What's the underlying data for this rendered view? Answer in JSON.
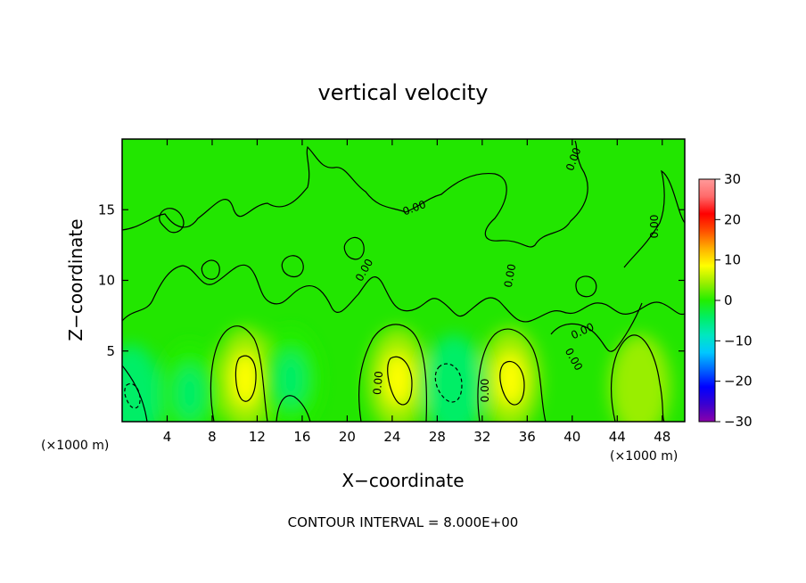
{
  "chart_data": {
    "type": "heatmap",
    "title": "vertical velocity",
    "xlabel": "X−coordinate",
    "ylabel": "Z−coordinate",
    "x_unit_left": "(×1000 m)",
    "x_unit_right": "(×1000 m)",
    "xlim": [
      0,
      50
    ],
    "ylim": [
      0,
      20
    ],
    "x_ticks": [
      4,
      8,
      12,
      16,
      20,
      24,
      28,
      32,
      36,
      40,
      44,
      48
    ],
    "y_ticks": [
      5,
      10,
      15
    ],
    "colorbar": {
      "ticks": [
        "30",
        "20",
        "10",
        "0",
        "−10",
        "−20",
        "−30"
      ],
      "min": -30,
      "max": 30,
      "colors": [
        "#8a00aa",
        "#3a00d0",
        "#0000ff",
        "#0066ff",
        "#00c8ff",
        "#00e8c0",
        "#00ee66",
        "#22ee00",
        "#99ee00",
        "#ffff00",
        "#ffb000",
        "#ff5000",
        "#ff0000",
        "#ff6a6a",
        "#ff9a9a"
      ]
    },
    "contour_interval_text": "CONTOUR INTERVAL = 8.000E+00",
    "contour_labels": [
      "0.00",
      "0.00",
      "0.00",
      "0.00",
      "0.00",
      "0.00",
      "0.00",
      "0.00",
      "0.00"
    ],
    "features": [
      {
        "kind": "updraft",
        "x": 11.0,
        "z": 3.0,
        "value": 10
      },
      {
        "kind": "updraft",
        "x": 24.5,
        "z": 3.0,
        "value": 10
      },
      {
        "kind": "updraft",
        "x": 34.5,
        "z": 3.0,
        "value": 10
      },
      {
        "kind": "updraft",
        "x": 46.0,
        "z": 2.5,
        "value": 6
      },
      {
        "kind": "downdraft",
        "x": 0.8,
        "z": 1.8,
        "value": -6
      },
      {
        "kind": "downdraft",
        "x": 29.5,
        "z": 2.5,
        "value": -6
      },
      {
        "kind": "downdraft",
        "x": 6.0,
        "z": 2.0,
        "value": -4
      },
      {
        "kind": "downdraft",
        "x": 15.0,
        "z": 3.0,
        "value": -3
      }
    ]
  }
}
